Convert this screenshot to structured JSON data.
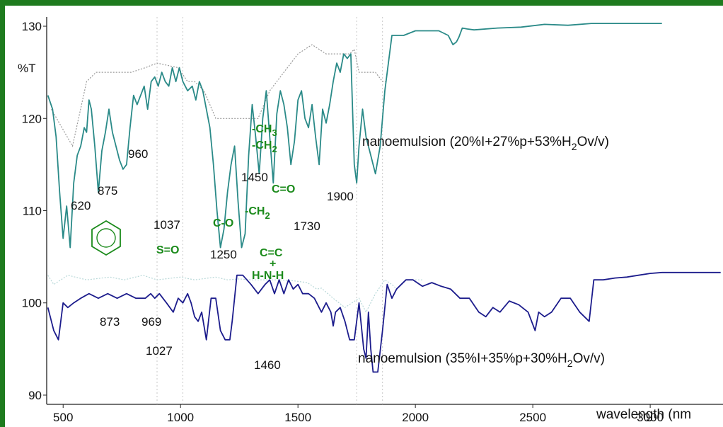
{
  "chart_data": {
    "type": "line",
    "ylabel": "%T",
    "xlabel": "wavelength (nm",
    "xlim": [
      430,
      3310
    ],
    "ylim": [
      89,
      131
    ],
    "x_ticks": [
      500,
      1000,
      1500,
      2000,
      2500,
      3000
    ],
    "y_ticks": [
      90,
      100,
      110,
      120,
      130
    ],
    "y_tick_labels": [
      "90",
      "100",
      "110",
      "120",
      "130"
    ],
    "grid_x": [
      900,
      1010,
      1750,
      1860
    ],
    "colors": {
      "frame": "#1e7b1e",
      "series_top": "#2a8a88",
      "series_bottom": "#1c1c8c",
      "groups": "#1a8a1a",
      "reference": "#999999"
    },
    "series": [
      {
        "name": "nanoemulsion (20%I+27%p+53%H2Ov/v)",
        "label_main": "nanoemulsion (20%I+27%p+53%H",
        "label_sub": "2",
        "label_tail": "Ov/v)",
        "x": [
          435,
          455,
          470,
          485,
          500,
          515,
          530,
          545,
          560,
          575,
          590,
          600,
          610,
          620,
          635,
          650,
          665,
          680,
          695,
          710,
          725,
          740,
          755,
          770,
          785,
          800,
          815,
          830,
          845,
          860,
          875,
          890,
          905,
          920,
          935,
          950,
          965,
          980,
          995,
          1010,
          1030,
          1050,
          1065,
          1080,
          1095,
          1110,
          1125,
          1140,
          1155,
          1170,
          1185,
          1200,
          1215,
          1230,
          1245,
          1260,
          1275,
          1290,
          1305,
          1320,
          1335,
          1350,
          1365,
          1380,
          1395,
          1410,
          1425,
          1440,
          1455,
          1470,
          1485,
          1500,
          1515,
          1530,
          1545,
          1560,
          1575,
          1590,
          1605,
          1620,
          1635,
          1650,
          1665,
          1680,
          1695,
          1710,
          1725,
          1740,
          1750,
          1760,
          1775,
          1790,
          1810,
          1830,
          1850,
          1870,
          1900,
          1950,
          2000,
          2050,
          2100,
          2140,
          2160,
          2175,
          2185,
          2200,
          2220,
          2250,
          2350,
          2450,
          2550,
          2650,
          2750,
          2850,
          2950,
          3050
        ],
        "y": [
          122.5,
          121,
          118,
          112,
          107,
          110.5,
          106,
          113,
          116,
          117,
          119,
          118.5,
          122,
          121,
          117,
          112,
          116.5,
          118.5,
          121,
          118.5,
          117,
          115.5,
          114.5,
          115,
          119,
          122.5,
          121.5,
          122.5,
          123.5,
          121,
          124,
          124.5,
          123.5,
          125,
          124,
          123.5,
          125.5,
          124,
          125.5,
          124,
          123,
          123.5,
          122,
          124,
          123,
          121,
          119,
          115,
          110,
          106,
          108,
          112,
          115,
          117,
          111,
          106,
          107.5,
          116,
          121.5,
          118,
          114,
          120,
          123,
          118,
          113,
          120.5,
          123,
          121.5,
          119,
          115,
          117.5,
          122,
          123,
          120,
          119,
          121.5,
          118,
          115,
          121,
          119.5,
          121.5,
          124,
          126,
          125,
          127,
          126.5,
          127,
          115,
          113,
          117,
          121,
          118,
          116,
          114,
          117,
          123,
          129,
          129,
          129.5,
          129.5,
          129.5,
          129,
          128,
          128.3,
          128.8,
          129.8,
          129.7,
          129.6,
          129.8,
          129.9,
          130.2,
          130.1,
          130.3,
          130.3,
          130.3,
          130.3
        ]
      },
      {
        "name": "nanoemulsion (35%I+35%p+30%H2Ov/v)",
        "label_main": "nanoemulsion (35%I+35%p+30%H",
        "label_sub": "2",
        "label_tail": "Ov/v)",
        "x": [
          435,
          460,
          480,
          500,
          520,
          545,
          575,
          610,
          650,
          690,
          730,
          770,
          810,
          850,
          873,
          890,
          910,
          940,
          969,
          990,
          1010,
          1030,
          1045,
          1060,
          1075,
          1090,
          1110,
          1130,
          1150,
          1170,
          1190,
          1210,
          1220,
          1240,
          1265,
          1300,
          1330,
          1360,
          1380,
          1400,
          1420,
          1440,
          1460,
          1480,
          1500,
          1520,
          1545,
          1570,
          1600,
          1620,
          1640,
          1650,
          1660,
          1680,
          1700,
          1720,
          1740,
          1760,
          1780,
          1790,
          1800,
          1810,
          1820,
          1840,
          1860,
          1880,
          1900,
          1920,
          1940,
          1960,
          1990,
          2030,
          2070,
          2110,
          2150,
          2190,
          2230,
          2270,
          2300,
          2330,
          2360,
          2400,
          2440,
          2480,
          2510,
          2525,
          2550,
          2580,
          2620,
          2660,
          2700,
          2740,
          2760,
          2780,
          2800,
          2850,
          2900,
          2950,
          3000,
          3050,
          3100,
          3150,
          3200,
          3250,
          3300
        ],
        "y": [
          99.5,
          97,
          96,
          100,
          99.5,
          100,
          100.5,
          101,
          100.5,
          101,
          100.5,
          101,
          100.5,
          100.5,
          101,
          100.5,
          101,
          100,
          99,
          100.5,
          100,
          101,
          100,
          98.5,
          98,
          99,
          96,
          100.5,
          100.5,
          97,
          96,
          96,
          98,
          103,
          103,
          102,
          101,
          102,
          102.5,
          101,
          102.5,
          101,
          102.5,
          101.5,
          102,
          101,
          101,
          100.5,
          99,
          100,
          99,
          97.5,
          99,
          99.5,
          98,
          96,
          96,
          100,
          95,
          94,
          99,
          95,
          92.5,
          92.5,
          97,
          102,
          100.5,
          101.5,
          102,
          102.5,
          102.5,
          101.8,
          102.2,
          101.8,
          101.5,
          100.5,
          100.5,
          99,
          98.5,
          99.5,
          99,
          100.2,
          99.8,
          99,
          97,
          99,
          98.5,
          99,
          100.5,
          100.5,
          99,
          98,
          102.5,
          102.5,
          102.5,
          102.7,
          102.8,
          103,
          103.2,
          103.3,
          103.3,
          103.3,
          103.3,
          103.3,
          103.3
        ]
      }
    ],
    "reference_series": [
      {
        "x": [
          450,
          540,
          600,
          640,
          690,
          790,
          850,
          900,
          990,
          1030,
          1060,
          1100,
          1150,
          1250,
          1260,
          1330,
          1380,
          1500,
          1560,
          1620,
          1680,
          1720,
          1740,
          1760,
          1780,
          1800,
          1830,
          1860,
          1880
        ],
        "y": [
          121,
          117,
          124,
          125,
          125,
          125,
          125.5,
          126,
          125.5,
          124,
          124,
          123,
          120,
          120,
          120,
          120,
          123,
          127,
          128,
          127,
          127,
          127,
          127.5,
          125,
          125,
          125,
          125,
          124,
          124
        ]
      },
      {
        "x": [
          435,
          460,
          520,
          600,
          700,
          760,
          840,
          900,
          1000,
          1060,
          1150,
          1200,
          1250,
          1300,
          1360,
          1420,
          1480,
          1540,
          1580,
          1600,
          1650,
          1700,
          1760,
          1790,
          1830,
          1870,
          1900,
          1920,
          1960,
          2000,
          2030
        ],
        "y": [
          103,
          102,
          103,
          102.5,
          102.8,
          102.5,
          103,
          102.5,
          102.8,
          102.5,
          102.8,
          102.5,
          102.6,
          102.5,
          102.5,
          102.5,
          102.4,
          102.2,
          101.5,
          101.6,
          100.5,
          99.5,
          100.5,
          99,
          101,
          102.5,
          102,
          101.5,
          102.5,
          102.5,
          102.5
        ]
      }
    ],
    "annotations": {
      "s1_620": "620",
      "s1_875": "875",
      "s1_960": "960",
      "s1_1037": "1037",
      "s1_1250": "1250",
      "s1_1450": "1450",
      "s1_1730": "1730",
      "s1_1900": "1900",
      "s2_873": "873",
      "s2_969": "969",
      "s2_1027": "1027",
      "s2_1460": "1460"
    },
    "groups": {
      "ch3_main": "-CH",
      "ch3_sub": "3",
      "ch2_main": "-CH",
      "ch2_sub": "2",
      "c_o_double": "C=O",
      "ch2b_main": "-CH",
      "ch2b_sub": "2",
      "c_o_single": "C-O",
      "s_o": "S=O",
      "c_c": "C=C",
      "plus": "+",
      "h_n_h": "H-N-H"
    }
  }
}
